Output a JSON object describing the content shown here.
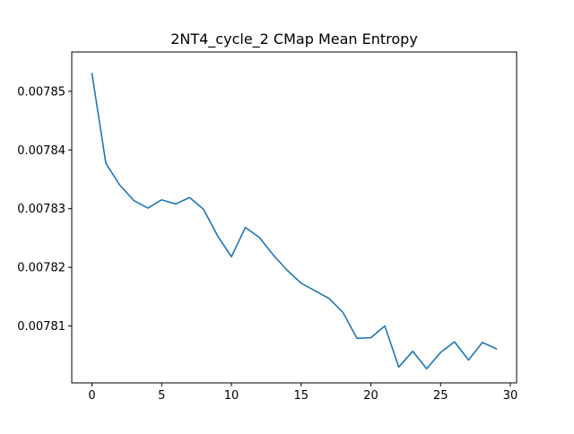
{
  "chart_data": {
    "type": "line",
    "title": "2NT4_cycle_2 CMap Mean Entropy",
    "xlabel": "",
    "ylabel": "",
    "xlim": [
      -1.45,
      30.45
    ],
    "ylim": [
      0.0078003,
      0.0078567
    ],
    "xticks": [
      0,
      5,
      10,
      15,
      20,
      25,
      30
    ],
    "xtick_labels": [
      "0",
      "5",
      "10",
      "15",
      "20",
      "25",
      "30"
    ],
    "yticks": [
      0.00781,
      0.00782,
      0.00783,
      0.00784,
      0.00785
    ],
    "ytick_labels": [
      "0.00781",
      "0.00782",
      "0.00783",
      "0.00784",
      "0.00785"
    ],
    "grid": false,
    "series": [
      {
        "color": "#1f77b4",
        "x": [
          0,
          1,
          2,
          3,
          4,
          5,
          6,
          7,
          8,
          9,
          10,
          11,
          12,
          13,
          14,
          15,
          16,
          17,
          18,
          19,
          20,
          21,
          22,
          23,
          24,
          25,
          26,
          27,
          28,
          29
        ],
        "y": [
          0.007853,
          0.0078377,
          0.007834,
          0.0078314,
          0.0078301,
          0.0078315,
          0.0078308,
          0.0078319,
          0.0078299,
          0.0078254,
          0.0078218,
          0.0078268,
          0.0078251,
          0.0078221,
          0.0078195,
          0.0078173,
          0.007816,
          0.0078147,
          0.0078123,
          0.0078079,
          0.007808,
          0.00781,
          0.007803,
          0.0078057,
          0.0078027,
          0.0078055,
          0.0078073,
          0.0078042,
          0.0078072,
          0.0078061
        ]
      }
    ]
  }
}
